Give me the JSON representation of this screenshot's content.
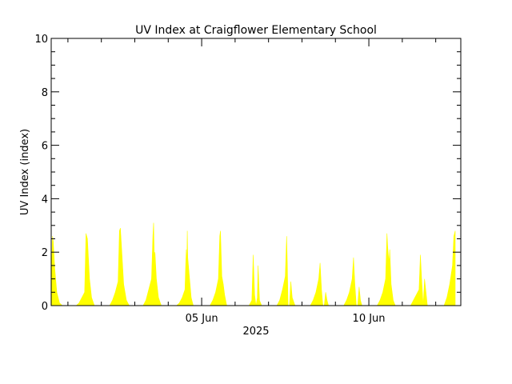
{
  "chart_data": {
    "type": "area",
    "title": "UV Index at Craigflower Elementary School",
    "xlabel": "2025",
    "ylabel": "UV Index (index)",
    "ylim": [
      0,
      10
    ],
    "yticks": [
      0,
      2,
      4,
      6,
      8,
      10
    ],
    "xlim": [
      "2025-05-31 12:00",
      "2025-06-12 18:00"
    ],
    "xticks": [
      {
        "label": "05 Jun",
        "date": "2025-06-05 00:00"
      },
      {
        "label": "10 Jun",
        "date": "2025-06-10 00:00"
      }
    ],
    "grid": false,
    "fill_color": "#ffff00",
    "series": [
      {
        "days": [
          {
            "date": "2025-05-31",
            "profile": [
              [
                "06:00",
                0.0
              ],
              [
                "08:00",
                0.2
              ],
              [
                "10:00",
                0.4
              ],
              [
                "12:00",
                1.0
              ],
              [
                "13:00",
                2.6
              ],
              [
                "13:30",
                2.4
              ],
              [
                "14:30",
                1.4
              ],
              [
                "16:00",
                0.5
              ],
              [
                "18:00",
                0.1
              ],
              [
                "20:00",
                0.0
              ]
            ]
          },
          {
            "date": "2025-06-01",
            "profile": [
              [
                "06:00",
                0.0
              ],
              [
                "08:00",
                0.1
              ],
              [
                "10:00",
                0.3
              ],
              [
                "12:00",
                0.5
              ],
              [
                "13:00",
                2.7
              ],
              [
                "14:00",
                2.5
              ],
              [
                "15:30",
                1.0
              ],
              [
                "17:00",
                0.3
              ],
              [
                "19:00",
                0.0
              ]
            ]
          },
          {
            "date": "2025-06-02",
            "profile": [
              [
                "06:00",
                0.0
              ],
              [
                "08:00",
                0.2
              ],
              [
                "10:00",
                0.5
              ],
              [
                "12:00",
                0.9
              ],
              [
                "13:00",
                2.8
              ],
              [
                "13:40",
                2.9
              ],
              [
                "14:30",
                2.2
              ],
              [
                "16:00",
                0.8
              ],
              [
                "18:00",
                0.2
              ],
              [
                "20:00",
                0.0
              ]
            ]
          },
          {
            "date": "2025-06-03",
            "profile": [
              [
                "06:00",
                0.0
              ],
              [
                "08:00",
                0.2
              ],
              [
                "10:00",
                0.6
              ],
              [
                "12:00",
                1.0
              ],
              [
                "13:00",
                2.6
              ],
              [
                "13:30",
                3.1
              ],
              [
                "14:00",
                1.8
              ],
              [
                "14:30",
                2.0
              ],
              [
                "15:30",
                1.0
              ],
              [
                "17:00",
                0.3
              ],
              [
                "19:00",
                0.0
              ]
            ]
          },
          {
            "date": "2025-06-04",
            "profile": [
              [
                "06:00",
                0.0
              ],
              [
                "08:00",
                0.1
              ],
              [
                "10:00",
                0.3
              ],
              [
                "12:00",
                0.6
              ],
              [
                "12:30",
                1.5
              ],
              [
                "13:00",
                2.1
              ],
              [
                "13:20",
                1.4
              ],
              [
                "13:40",
                2.8
              ],
              [
                "14:00",
                1.8
              ],
              [
                "15:00",
                1.2
              ],
              [
                "16:30",
                0.3
              ],
              [
                "18:00",
                0.0
              ]
            ]
          },
          {
            "date": "2025-06-05",
            "profile": [
              [
                "06:00",
                0.0
              ],
              [
                "08:00",
                0.2
              ],
              [
                "10:00",
                0.5
              ],
              [
                "12:00",
                1.0
              ],
              [
                "13:00",
                2.6
              ],
              [
                "13:30",
                2.8
              ],
              [
                "14:30",
                1.1
              ],
              [
                "15:30",
                0.8
              ],
              [
                "16:30",
                0.4
              ],
              [
                "18:00",
                0.0
              ]
            ]
          },
          {
            "date": "2025-06-06",
            "profile": [
              [
                "06:00",
                0.0
              ],
              [
                "08:00",
                0.0
              ],
              [
                "10:00",
                0.0
              ],
              [
                "12:00",
                0.2
              ],
              [
                "13:00",
                1.9
              ],
              [
                "14:00",
                0.4
              ],
              [
                "15:00",
                0.0
              ],
              [
                "16:00",
                0.3
              ],
              [
                "16:30",
                1.5
              ],
              [
                "17:30",
                0.2
              ],
              [
                "19:00",
                0.0
              ]
            ]
          },
          {
            "date": "2025-06-07",
            "profile": [
              [
                "06:00",
                0.0
              ],
              [
                "08:00",
                0.2
              ],
              [
                "10:00",
                0.6
              ],
              [
                "12:00",
                1.1
              ],
              [
                "13:00",
                2.6
              ],
              [
                "13:30",
                1.5
              ],
              [
                "14:00",
                0.0
              ],
              [
                "15:00",
                0.0
              ],
              [
                "16:00",
                0.9
              ],
              [
                "17:00",
                0.3
              ],
              [
                "19:00",
                0.0
              ]
            ]
          },
          {
            "date": "2025-06-08",
            "profile": [
              [
                "06:00",
                0.0
              ],
              [
                "08:00",
                0.2
              ],
              [
                "10:00",
                0.5
              ],
              [
                "12:00",
                1.0
              ],
              [
                "13:00",
                1.6
              ],
              [
                "14:00",
                0.6
              ],
              [
                "15:00",
                0.0
              ],
              [
                "16:00",
                0.0
              ],
              [
                "17:00",
                0.5
              ],
              [
                "18:00",
                0.2
              ],
              [
                "19:00",
                0.0
              ]
            ]
          },
          {
            "date": "2025-06-09",
            "profile": [
              [
                "06:00",
                0.0
              ],
              [
                "08:00",
                0.2
              ],
              [
                "10:00",
                0.5
              ],
              [
                "12:00",
                1.0
              ],
              [
                "13:00",
                1.8
              ],
              [
                "14:00",
                0.8
              ],
              [
                "15:00",
                0.0
              ],
              [
                "16:00",
                0.0
              ],
              [
                "17:00",
                0.7
              ],
              [
                "18:00",
                0.2
              ],
              [
                "19:00",
                0.0
              ]
            ]
          },
          {
            "date": "2025-06-10",
            "profile": [
              [
                "06:00",
                0.0
              ],
              [
                "08:00",
                0.2
              ],
              [
                "10:00",
                0.5
              ],
              [
                "12:00",
                1.0
              ],
              [
                "13:00",
                2.7
              ],
              [
                "13:30",
                2.2
              ],
              [
                "14:30",
                1.6
              ],
              [
                "15:00",
                2.1
              ],
              [
                "16:00",
                0.8
              ],
              [
                "17:30",
                0.2
              ],
              [
                "19:00",
                0.0
              ]
            ]
          },
          {
            "date": "2025-06-11",
            "profile": [
              [
                "06:00",
                0.0
              ],
              [
                "08:00",
                0.2
              ],
              [
                "10:00",
                0.4
              ],
              [
                "12:00",
                0.6
              ],
              [
                "13:00",
                1.9
              ],
              [
                "14:00",
                0.9
              ],
              [
                "15:00",
                0.0
              ],
              [
                "16:00",
                1.0
              ],
              [
                "17:00",
                0.5
              ],
              [
                "18:00",
                0.0
              ]
            ]
          },
          {
            "date": "2025-06-12",
            "profile": [
              [
                "06:00",
                0.0
              ],
              [
                "08:00",
                0.3
              ],
              [
                "10:00",
                0.8
              ],
              [
                "12:00",
                1.5
              ],
              [
                "13:00",
                2.6
              ],
              [
                "14:00",
                2.8
              ]
            ]
          }
        ]
      }
    ]
  }
}
